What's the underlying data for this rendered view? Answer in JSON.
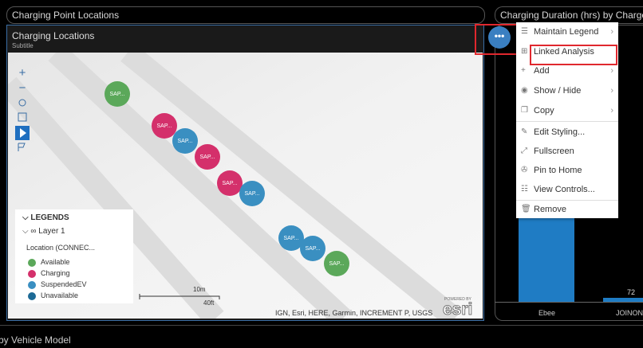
{
  "left_panel": {
    "title": "Charging Point Locations"
  },
  "map_widget": {
    "title": "Charging Locations",
    "subtitle": "Subtitle",
    "points": [
      {
        "label": "SAP..."
      },
      {
        "label": "SAP..."
      },
      {
        "label": "SAP..."
      },
      {
        "label": "SAP..."
      },
      {
        "label": "SAP..."
      },
      {
        "label": "SAP..."
      },
      {
        "label": "SAP..."
      },
      {
        "label": "SAP..."
      },
      {
        "label": "SAP..."
      }
    ],
    "legend": {
      "title": "LEGENDS",
      "layer": "Layer 1",
      "field": "Location (CONNEC...",
      "items": [
        "Available",
        "Charging",
        "SuspendedEV",
        "Unavailable"
      ]
    },
    "scale": {
      "metric": "10m",
      "imperial": "40ft"
    },
    "attribution": "IGN, Esri, HERE, Garmin, INCREMENT P, USGS",
    "logo": {
      "powered_by": "POWERED BY",
      "name": "esri"
    }
  },
  "context_menu": {
    "items": [
      "Maintain Legend",
      "Linked Analysis",
      "Add",
      "Show / Hide",
      "Copy",
      "Edit Styling...",
      "Fullscreen",
      "Pin to Home",
      "View Controls...",
      "Remove"
    ]
  },
  "right_panel": {
    "title": "Charging Duration (hrs) by Charge",
    "data_label": "72",
    "categories": [
      "Ebee",
      "JOINON"
    ]
  },
  "bottom_panel": {
    "title": "by Vehicle Model"
  }
}
